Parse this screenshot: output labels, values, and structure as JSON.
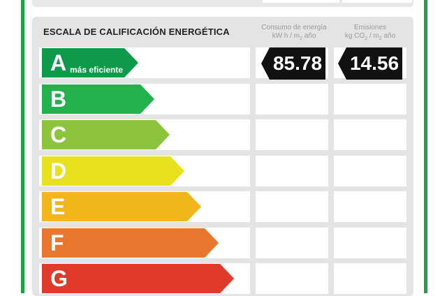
{
  "title": "ESCALA DE CALIFICACIÓN ENERGÉTICA",
  "columns": {
    "energy": {
      "line1": "Consumo de energía",
      "line2a": "kW h / m",
      "line2sub": "2",
      "line2b": " año"
    },
    "emissions": {
      "line1": "Emisiones",
      "line2a": "kg CO",
      "line2sub": "2",
      "line2b": " / m",
      "line2sub2": "2",
      "line2c": " año"
    }
  },
  "top_label": "más eficiente",
  "ratings": [
    {
      "letter": "A",
      "color": "#0e9a4a"
    },
    {
      "letter": "B",
      "color": "#22b14c"
    },
    {
      "letter": "C",
      "color": "#8cc43e"
    },
    {
      "letter": "D",
      "color": "#e8e21e"
    },
    {
      "letter": "E",
      "color": "#f2b51c"
    },
    {
      "letter": "F",
      "color": "#e8762c"
    },
    {
      "letter": "G",
      "color": "#e03a2b"
    }
  ],
  "current": {
    "energy_value": "85.78",
    "emissions_value": "14.56",
    "tag_color": "#111111"
  }
}
